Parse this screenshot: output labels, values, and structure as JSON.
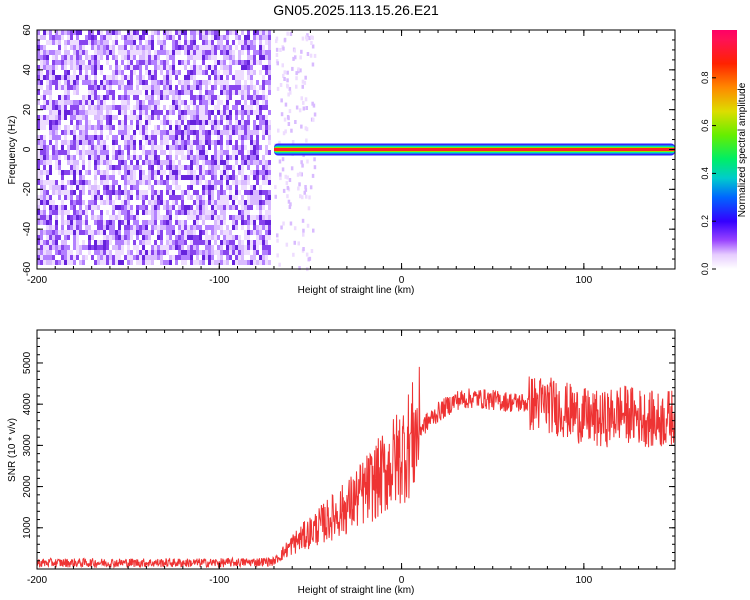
{
  "title": "GN05.2025.113.15.26.E21",
  "chart_data": [
    {
      "type": "heatmap",
      "xlabel": "Height of straight line (km)",
      "ylabel": "Frequency (Hz)",
      "xlim": [
        -200,
        150
      ],
      "ylim": [
        -60,
        60
      ],
      "x_ticks": [
        -200,
        -100,
        0,
        100
      ],
      "y_ticks": [
        -60,
        -40,
        -20,
        0,
        20,
        40,
        60
      ],
      "noise_region_x": [
        -200,
        -70
      ],
      "signal_line": {
        "frequency": 0,
        "x_start": -70,
        "x_end": 150
      },
      "colorbar": {
        "label": "Normalized spectral amplitude",
        "range": [
          0,
          1
        ],
        "ticks": [
          0,
          0.2,
          0.4,
          0.6,
          0.8
        ],
        "tick_labels": [
          "0.0",
          "0.2",
          "0.4",
          "0.6",
          "0.8"
        ]
      }
    },
    {
      "type": "line",
      "xlabel": "Height of straight line (km)",
      "ylabel": "SNR (10 * v/v)",
      "xlim": [
        -200,
        150
      ],
      "ylim": [
        0,
        5800
      ],
      "x_ticks": [
        -200,
        -100,
        0,
        100
      ],
      "y_ticks": [
        1000,
        2000,
        3000,
        4000,
        5000
      ],
      "color": "#ee3333",
      "series": [
        {
          "x": [
            -200,
            -150,
            -100,
            -70,
            -60,
            -50,
            -40,
            -30,
            -20,
            -10,
            0,
            10,
            20,
            30,
            40,
            60,
            80,
            100,
            110,
            120,
            130,
            140,
            150
          ],
          "y": [
            150,
            150,
            150,
            180,
            600,
            900,
            1200,
            1500,
            1900,
            2300,
            2800,
            3400,
            3800,
            4100,
            4150,
            4050,
            4000,
            3700,
            3600,
            3800,
            3700,
            3600,
            3700
          ]
        }
      ]
    }
  ],
  "colors": {
    "line": "#ee3333",
    "noise": "#7722ee",
    "axis": "#000000"
  }
}
